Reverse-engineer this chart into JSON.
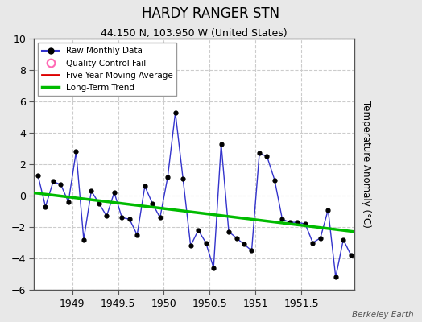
{
  "title": "HARDY RANGER STN",
  "subtitle": "44.150 N, 103.950 W (United States)",
  "ylabel": "Temperature Anomaly (°C)",
  "watermark": "Berkeley Earth",
  "xlim": [
    1948.58,
    1952.08
  ],
  "ylim": [
    -6,
    10
  ],
  "yticks": [
    -6,
    -4,
    -2,
    0,
    2,
    4,
    6,
    8,
    10
  ],
  "xticks": [
    1949,
    1949.5,
    1950,
    1950.5,
    1951,
    1951.5
  ],
  "outer_bg": "#e8e8e8",
  "plot_bg": "#ffffff",
  "grid_color": "#cccccc",
  "raw_x": [
    1948.625,
    1948.708,
    1948.792,
    1948.875,
    1948.958,
    1949.042,
    1949.125,
    1949.208,
    1949.292,
    1949.375,
    1949.458,
    1949.542,
    1949.625,
    1949.708,
    1949.792,
    1949.875,
    1949.958,
    1950.042,
    1950.125,
    1950.208,
    1950.292,
    1950.375,
    1950.458,
    1950.542,
    1950.625,
    1950.708,
    1950.792,
    1950.875,
    1950.958,
    1951.042,
    1951.125,
    1951.208,
    1951.292,
    1951.375,
    1951.458,
    1951.542,
    1951.625,
    1951.708,
    1951.792,
    1951.875,
    1951.958,
    1952.042
  ],
  "raw_y": [
    1.3,
    -0.7,
    0.9,
    0.7,
    -0.4,
    2.8,
    -2.8,
    0.3,
    -0.5,
    -1.3,
    0.2,
    -1.4,
    -1.5,
    -2.5,
    0.6,
    -0.5,
    -1.4,
    1.2,
    5.3,
    1.1,
    -3.2,
    -2.2,
    -3.0,
    -4.6,
    3.3,
    -2.3,
    -2.7,
    -3.1,
    -3.5,
    2.7,
    2.5,
    1.0,
    -1.5,
    -1.7,
    -1.7,
    -1.8,
    -3.0,
    -2.7,
    -0.9,
    -5.2,
    -2.8,
    -3.8
  ],
  "trend_x": [
    1948.58,
    1952.08
  ],
  "trend_y": [
    0.18,
    -2.3
  ],
  "raw_line_color": "#3333cc",
  "raw_marker_color": "#000000",
  "trend_color": "#00bb00",
  "mavg_color": "#dd0000",
  "qc_fail_color": "#ff69b4",
  "title_fontsize": 12,
  "subtitle_fontsize": 9,
  "tick_fontsize": 9,
  "ylabel_fontsize": 8.5
}
